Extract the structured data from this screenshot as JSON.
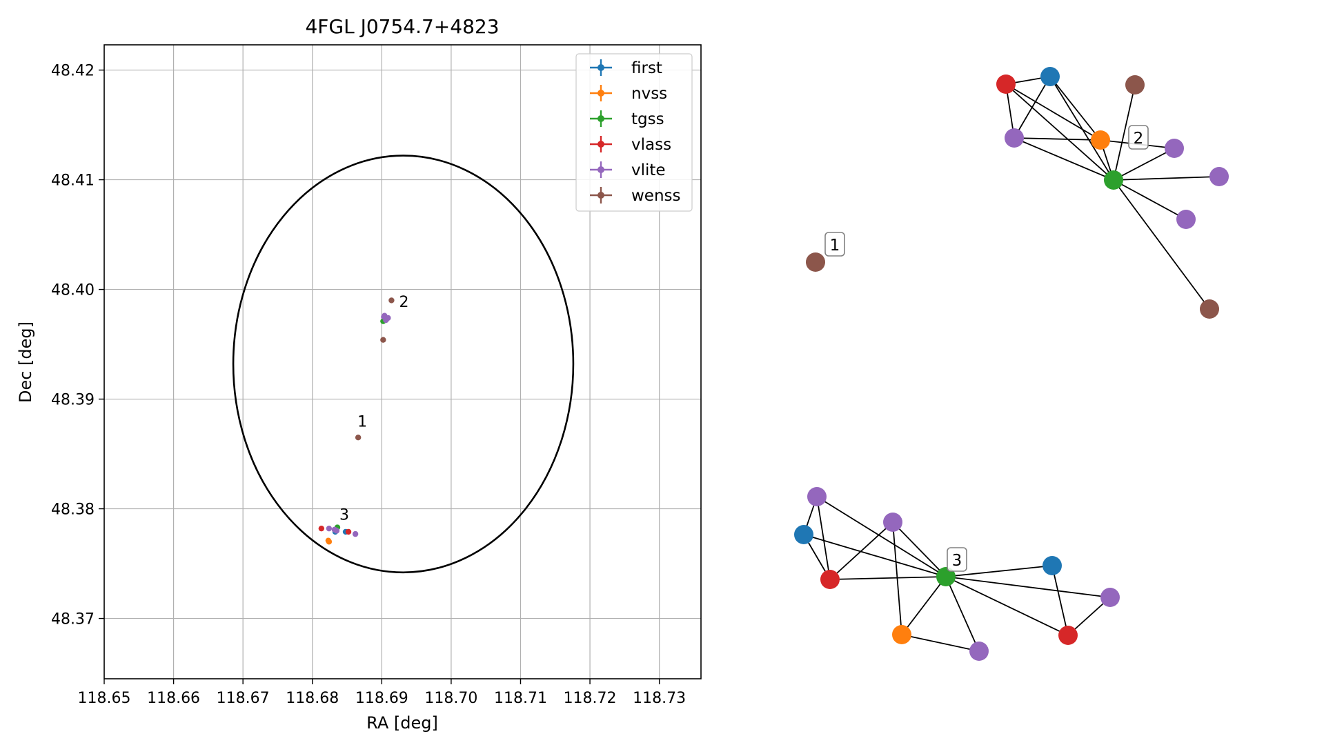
{
  "chart_data": [
    {
      "type": "scatter",
      "title": "4FGL J0754.7+4823",
      "xlabel": "RA [deg]",
      "ylabel": "Dec [deg]",
      "xlim": [
        118.65,
        118.736
      ],
      "ylim": [
        48.3645,
        48.4223
      ],
      "xticks": [
        "118.65",
        "118.66",
        "118.67",
        "118.68",
        "118.69",
        "118.70",
        "118.71",
        "118.72",
        "118.73"
      ],
      "yticks": [
        "48.37",
        "48.38",
        "48.39",
        "48.40",
        "48.41",
        "48.42"
      ],
      "grid": true,
      "legend_position": "top-right",
      "colors": {
        "first": "#1f77b4",
        "nvss": "#ff7f0e",
        "tgss": "#2ca02c",
        "vlass": "#d62728",
        "vlite": "#9467bd",
        "wenss": "#8c564b"
      },
      "series": [
        {
          "name": "first",
          "points": [
            [
              118.6833,
              48.3779
            ],
            [
              118.6848,
              48.3779
            ]
          ]
        },
        {
          "name": "nvss",
          "points": [
            [
              118.6823,
              48.3771
            ],
            [
              118.6824,
              48.377
            ]
          ]
        },
        {
          "name": "tgss",
          "points": [
            [
              118.6902,
              48.3971
            ],
            [
              118.6836,
              48.3783
            ]
          ]
        },
        {
          "name": "vlass",
          "points": [
            [
              118.6813,
              48.3782
            ],
            [
              118.6852,
              48.3779
            ]
          ]
        },
        {
          "name": "vlite",
          "points": [
            [
              118.6903,
              48.3975
            ],
            [
              118.6907,
              48.3973
            ],
            [
              118.6906,
              48.3972
            ],
            [
              118.6904,
              48.3976
            ],
            [
              118.6909,
              48.3974
            ],
            [
              118.6824,
              48.3782
            ],
            [
              118.6832,
              48.3781
            ],
            [
              118.6835,
              48.378
            ],
            [
              118.6862,
              48.3777
            ]
          ]
        },
        {
          "name": "wenss",
          "points": [
            [
              118.6914,
              48.399
            ],
            [
              118.6902,
              48.3954
            ],
            [
              118.6866,
              48.3865
            ]
          ]
        }
      ],
      "annotations": [
        {
          "text": "1",
          "x": 118.6872,
          "y": 48.3875
        },
        {
          "text": "2",
          "x": 118.6932,
          "y": 48.3984
        },
        {
          "text": "3",
          "x": 118.6846,
          "y": 48.379
        }
      ],
      "circle": {
        "center": [
          118.6931,
          48.3932
        ],
        "radius_ra": 0.0245,
        "radius_dec": 0.019
      }
    },
    {
      "type": "network",
      "colors": {
        "first": "#1f77b4",
        "nvss": "#ff7f0e",
        "tgss": "#2ca02c",
        "vlass": "#d62728",
        "vlite": "#9467bd",
        "wenss": "#8c564b"
      },
      "labels": [
        "1",
        "2",
        "3"
      ],
      "nodes": [
        {
          "id": "w1",
          "survey": "wenss"
        },
        {
          "id": "v2",
          "survey": "vlass"
        },
        {
          "id": "f2",
          "survey": "first"
        },
        {
          "id": "w2a",
          "survey": "wenss"
        },
        {
          "id": "l2a",
          "survey": "vlite"
        },
        {
          "id": "n2",
          "survey": "nvss"
        },
        {
          "id": "l2b",
          "survey": "vlite"
        },
        {
          "id": "t2",
          "survey": "tgss"
        },
        {
          "id": "l2c",
          "survey": "vlite"
        },
        {
          "id": "l2d",
          "survey": "vlite"
        },
        {
          "id": "w2b",
          "survey": "wenss"
        },
        {
          "id": "l3a",
          "survey": "vlite"
        },
        {
          "id": "f3a",
          "survey": "first"
        },
        {
          "id": "l3b",
          "survey": "vlite"
        },
        {
          "id": "v3a",
          "survey": "vlass"
        },
        {
          "id": "t3",
          "survey": "tgss"
        },
        {
          "id": "f3b",
          "survey": "first"
        },
        {
          "id": "l3c",
          "survey": "vlite"
        },
        {
          "id": "n3",
          "survey": "nvss"
        },
        {
          "id": "l3d",
          "survey": "vlite"
        },
        {
          "id": "v3b",
          "survey": "vlass"
        }
      ],
      "edges": [
        [
          "v2",
          "f2"
        ],
        [
          "v2",
          "l2a"
        ],
        [
          "v2",
          "n2"
        ],
        [
          "v2",
          "t2"
        ],
        [
          "f2",
          "l2a"
        ],
        [
          "f2",
          "n2"
        ],
        [
          "f2",
          "t2"
        ],
        [
          "w2a",
          "t2"
        ],
        [
          "l2a",
          "n2"
        ],
        [
          "l2a",
          "t2"
        ],
        [
          "n2",
          "t2"
        ],
        [
          "n2",
          "l2b"
        ],
        [
          "t2",
          "l2b"
        ],
        [
          "t2",
          "l2c"
        ],
        [
          "t2",
          "l2d"
        ],
        [
          "t2",
          "w2b"
        ],
        [
          "l3a",
          "f3a"
        ],
        [
          "l3a",
          "v3a"
        ],
        [
          "l3a",
          "t3"
        ],
        [
          "f3a",
          "v3a"
        ],
        [
          "f3a",
          "t3"
        ],
        [
          "l3b",
          "v3a"
        ],
        [
          "l3b",
          "t3"
        ],
        [
          "l3b",
          "n3"
        ],
        [
          "v3a",
          "t3"
        ],
        [
          "t3",
          "n3"
        ],
        [
          "t3",
          "l3d"
        ],
        [
          "t3",
          "f3b"
        ],
        [
          "t3",
          "l3c"
        ],
        [
          "t3",
          "v3b"
        ],
        [
          "n3",
          "l3d"
        ],
        [
          "f3b",
          "v3b"
        ],
        [
          "l3c",
          "v3b"
        ]
      ]
    }
  ]
}
